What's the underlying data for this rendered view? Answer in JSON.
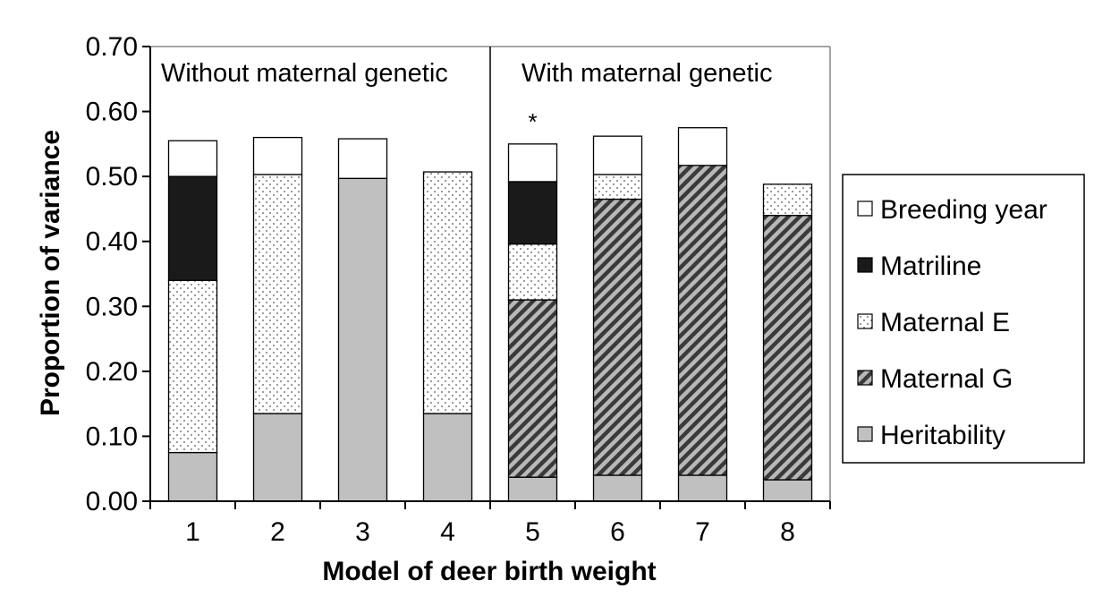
{
  "chart_data": {
    "type": "bar",
    "stacked": true,
    "xlabel": "Model of deer birth weight",
    "ylabel": "Proportion of variance",
    "ylim": [
      0,
      0.7
    ],
    "y_ticks": [
      "0.00",
      "0.10",
      "0.20",
      "0.30",
      "0.40",
      "0.50",
      "0.60",
      "0.70"
    ],
    "categories": [
      "1",
      "2",
      "3",
      "4",
      "5",
      "6",
      "7",
      "8"
    ],
    "grid": false,
    "legend_position": "right",
    "panels": [
      {
        "label": "Without maternal genetic",
        "categories": [
          "1",
          "2",
          "3",
          "4"
        ]
      },
      {
        "label": "With maternal genetic",
        "categories": [
          "5",
          "6",
          "7",
          "8"
        ]
      }
    ],
    "annotations": [
      {
        "category": "5",
        "text": "*"
      }
    ],
    "series": [
      {
        "name": "Heritability",
        "pattern": "solid-gray",
        "color": "#c0c0c0",
        "values": [
          0.075,
          0.135,
          0.497,
          0.135,
          0.037,
          0.04,
          0.04,
          0.033
        ]
      },
      {
        "name": "Maternal G",
        "pattern": "diagonal-hatch",
        "color": "#444444",
        "values": [
          0,
          0,
          0,
          0,
          0.273,
          0.425,
          0.477,
          0.407
        ]
      },
      {
        "name": "Maternal E",
        "pattern": "dots",
        "color": "#ffffff",
        "values": [
          0.265,
          0.368,
          0,
          0.372,
          0.086,
          0.038,
          0,
          0.048
        ]
      },
      {
        "name": "Matriline",
        "pattern": "solid-black",
        "color": "#1a1a1a",
        "values": [
          0.16,
          0,
          0,
          0,
          0.096,
          0,
          0,
          0
        ]
      },
      {
        "name": "Breeding year",
        "pattern": "solid-white",
        "color": "#ffffff",
        "values": [
          0.055,
          0.057,
          0.061,
          0,
          0.058,
          0.059,
          0.058,
          0
        ]
      }
    ],
    "legend_order": [
      "Breeding year",
      "Matriline",
      "Maternal E",
      "Maternal G",
      "Heritability"
    ]
  }
}
